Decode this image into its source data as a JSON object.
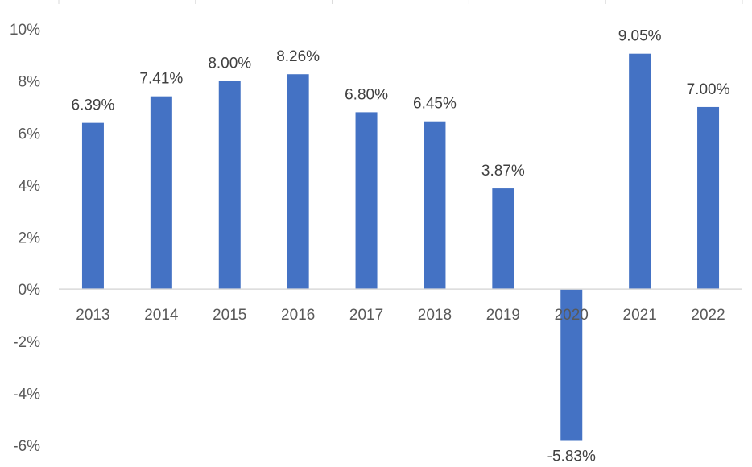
{
  "chart_data": {
    "type": "bar",
    "categories": [
      "2013",
      "2014",
      "2015",
      "2016",
      "2017",
      "2018",
      "2019",
      "2020",
      "2021",
      "2022"
    ],
    "values": [
      6.39,
      7.41,
      8.0,
      8.26,
      6.8,
      6.45,
      3.87,
      -5.83,
      9.05,
      7.0
    ],
    "data_labels": [
      "6.39%",
      "7.41%",
      "8.00%",
      "8.26%",
      "6.80%",
      "6.45%",
      "3.87%",
      "-5.83%",
      "9.05%",
      "7.00%"
    ],
    "yticks": [
      10,
      8,
      6,
      4,
      2,
      0,
      -2,
      -4,
      -6
    ],
    "ytick_labels": [
      "10%",
      "8%",
      "6%",
      "4%",
      "2%",
      "0%",
      "-2%",
      "-4%",
      "-6%"
    ],
    "ylim": [
      -6,
      10
    ],
    "title": "",
    "xlabel": "",
    "ylabel": "",
    "grid": false,
    "bar_color": "#4472C4",
    "axis_color": "#D9D9D9"
  }
}
